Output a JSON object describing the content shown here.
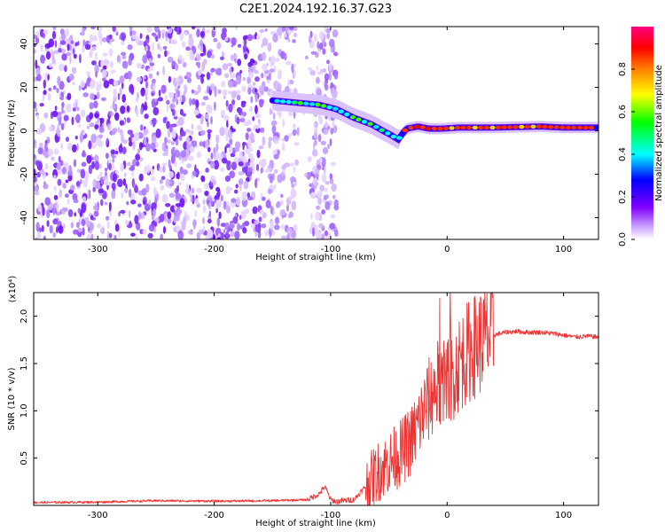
{
  "title": "C2E1.2024.192.16.37.G23",
  "chart_data": [
    {
      "type": "heatmap",
      "xlabel": "Height of straight line (km)",
      "ylabel": "Frequency (Hz)",
      "xlim": [
        -355,
        130
      ],
      "ylim": [
        -50,
        48
      ],
      "xticks": [
        -300,
        -200,
        -100,
        0,
        100
      ],
      "yticks": [
        -40,
        -20,
        0,
        20,
        40
      ],
      "colorbar": {
        "label": "Normalized spectral amplitude",
        "range": [
          0,
          1
        ],
        "ticks": [
          0.0,
          0.2,
          0.4,
          0.6,
          0.8
        ],
        "colormap": [
          "#ffffff",
          "#8000ff",
          "#0000ff",
          "#00ffff",
          "#00ff00",
          "#ffff00",
          "#ff8000",
          "#ff0000",
          "#ff0080"
        ]
      },
      "ridge": {
        "x": [
          -150,
          -130,
          -110,
          -95,
          -80,
          -65,
          -55,
          -48,
          -42,
          -35,
          -25,
          -15,
          -5,
          10,
          40,
          80,
          100,
          130
        ],
        "y": [
          14,
          13,
          12,
          10,
          6,
          3,
          0,
          -2,
          -4,
          1,
          2,
          1,
          1,
          1.5,
          1.5,
          2,
          1.5,
          1.5
        ]
      }
    },
    {
      "type": "line",
      "xlabel": "Height of straight line (km)",
      "ylabel": "SNR (10 * v/v)",
      "yscale_label": "(x10⁴)",
      "xlim": [
        -355,
        130
      ],
      "ylim": [
        0,
        22500
      ],
      "xticks": [
        -300,
        -200,
        -100,
        0,
        100
      ],
      "yticks": [
        5000,
        10000,
        15000,
        20000
      ],
      "ytick_labels": [
        "0.5",
        "1.0",
        "1.5",
        "2.0"
      ],
      "color": "#ee3333",
      "series": [
        {
          "x": [
            -355,
            -300,
            -250,
            -200,
            -150,
            -120,
            -110,
            -105,
            -100,
            -95,
            -90,
            -80,
            -70,
            -60,
            -50,
            -40,
            -30,
            -20,
            -10,
            -5,
            0,
            5,
            10,
            20,
            30,
            40,
            50,
            60,
            70,
            80,
            90,
            100,
            110,
            120,
            130
          ],
          "y": [
            300,
            350,
            500,
            450,
            500,
            600,
            1200,
            2000,
            600,
            400,
            500,
            600,
            2000,
            3500,
            4500,
            5500,
            7000,
            10000,
            12500,
            13000,
            13500,
            14000,
            15000,
            16500,
            17500,
            18000,
            18300,
            18400,
            18300,
            18300,
            18200,
            18000,
            17800,
            17900,
            17800
          ]
        }
      ]
    }
  ]
}
